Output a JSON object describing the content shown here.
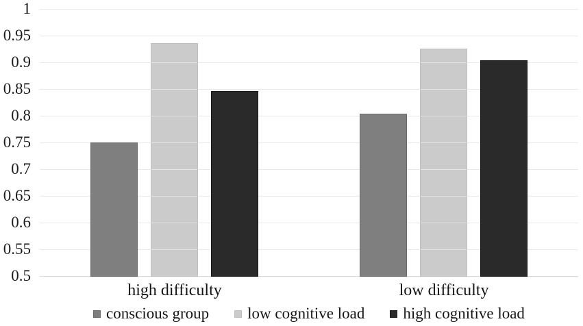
{
  "chart_data": {
    "type": "bar",
    "title": "",
    "xlabel": "",
    "ylabel": "",
    "categories": [
      "high difficulty",
      "low difficulty"
    ],
    "series": [
      {
        "name": "conscious group",
        "color": "#7f7f7f",
        "border_color": "#6b6b6b",
        "translucent": false,
        "values": [
          0.751,
          0.805
        ]
      },
      {
        "name": "low cognitive load",
        "color": "#cbcbcb",
        "border_color": "#c0c0c0",
        "translucent": true,
        "values": [
          0.937,
          0.927
        ]
      },
      {
        "name": "high cognitive load",
        "color": "#2a2a2a",
        "border_color": "#171717",
        "translucent": false,
        "values": [
          0.847,
          0.905
        ]
      }
    ],
    "ylim": [
      0.5,
      1.0
    ],
    "ytick_step": 0.05,
    "ytick_labels": [
      "1",
      "0.95",
      "0.9",
      "0.85",
      "0.8",
      "0.75",
      "0.7",
      "0.65",
      "0.6",
      "0.55",
      "0.5"
    ],
    "grid": true,
    "gridline_color": "#e9e9e9",
    "baseline_color": "#d9d9d9",
    "background_color": "#ffffff",
    "legend_position": "bottom"
  }
}
